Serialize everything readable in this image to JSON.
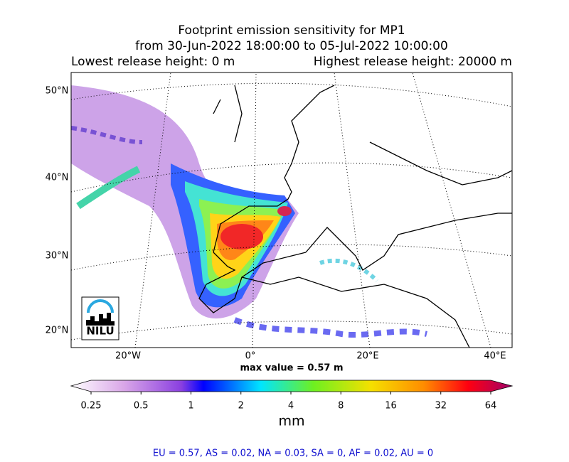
{
  "title_lines": [
    "Footprint emission sensitivity for MP1",
    "from 30-Jun-2022 18:00:00 to 05-Jul-2022 10:00:00"
  ],
  "lowest_release": "Lowest release height: 0 m",
  "highest_release": "Highest release height: 20000 m",
  "lat_labels": [
    "50°N",
    "40°N",
    "30°N",
    "20°N"
  ],
  "lon_labels": [
    "20°W",
    "0°",
    "20°E",
    "40°E"
  ],
  "max_value": "max value = 0.57 m",
  "logo": "NILU",
  "colorbar": {
    "ticks": [
      0.25,
      0.5,
      1,
      2,
      4,
      8,
      16,
      32,
      64
    ],
    "lim": [
      0.25,
      64
    ],
    "log": true,
    "label": "mm"
  },
  "footer": "EU = 0.57,  AS = 0.02,  NA = 0.03,  SA = 0,  AF = 0.02,  AU = 0"
}
